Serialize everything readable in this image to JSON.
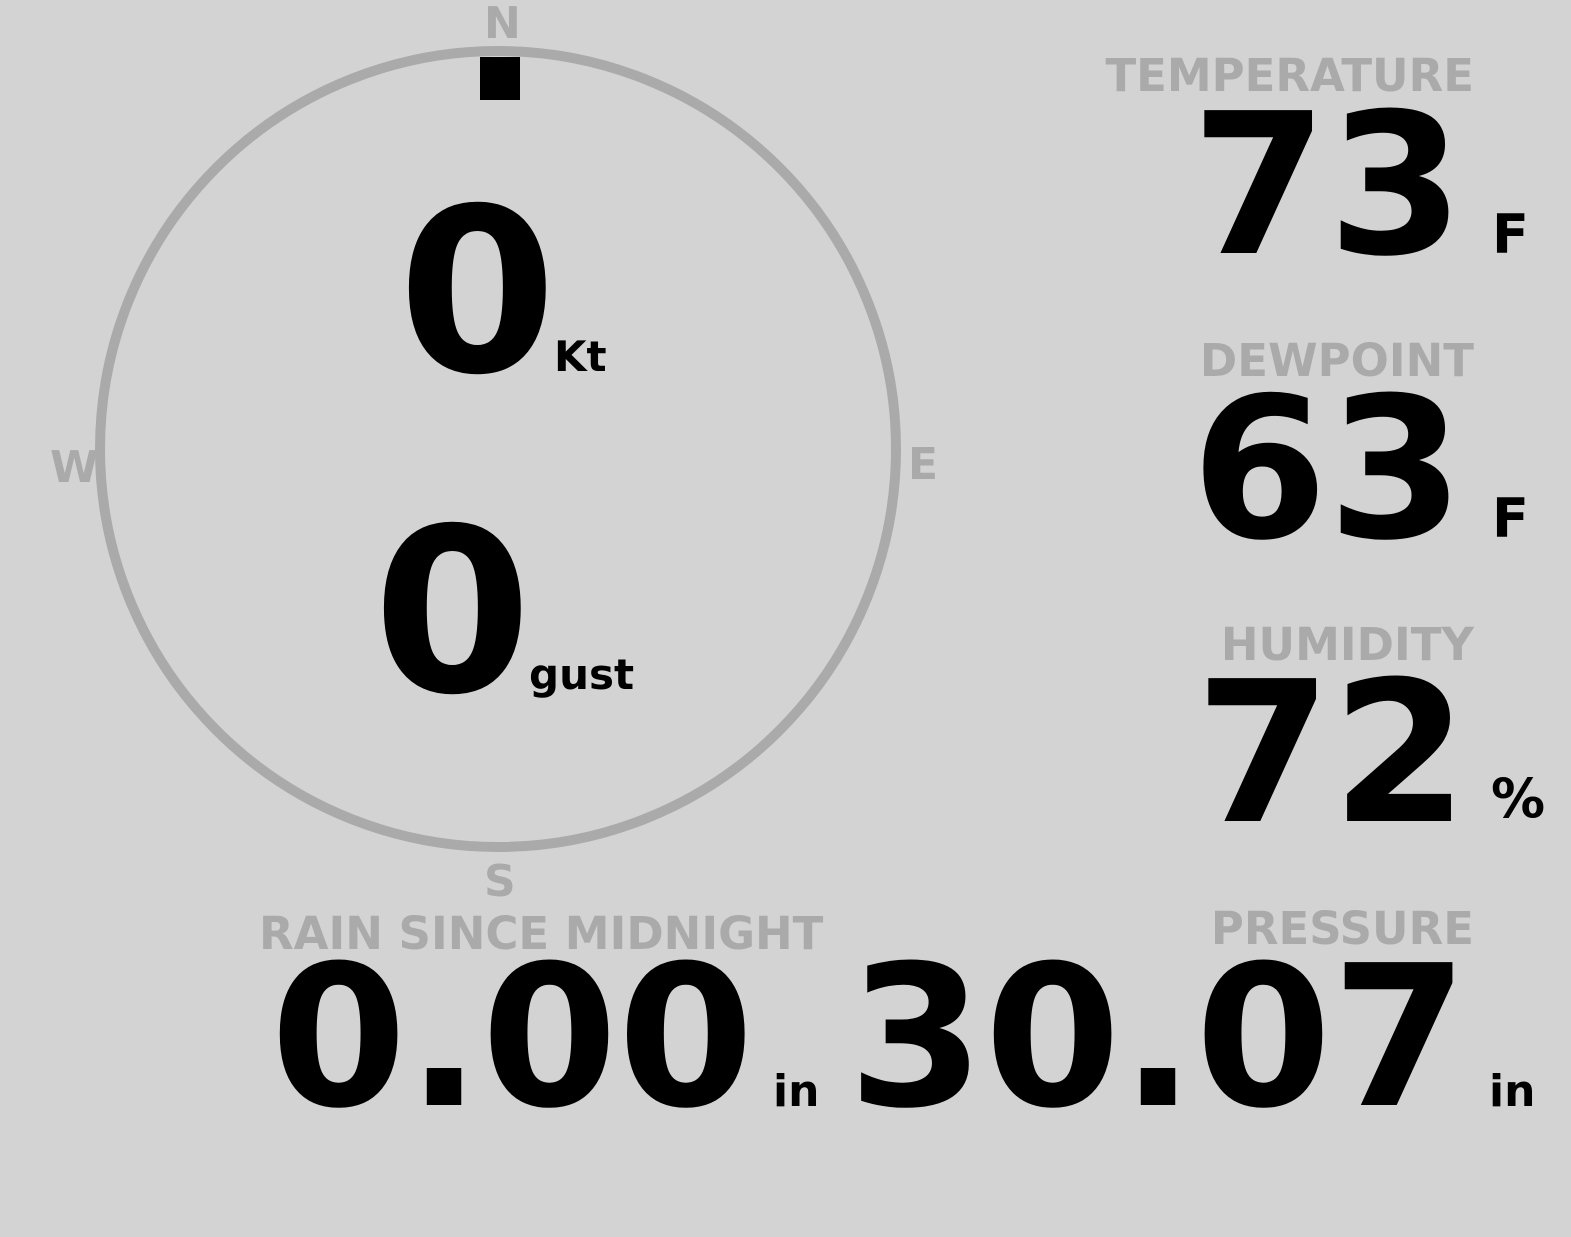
{
  "colors": {
    "background": "#d3d3d3",
    "label": "#aaaaaa",
    "value": "#000000",
    "dial": "#aaaaaa"
  },
  "wind": {
    "cardinals": {
      "n": "N",
      "e": "E",
      "s": "S",
      "w": "W"
    },
    "direction_deg": 0,
    "speed": "0",
    "speed_unit": "Kt",
    "gust": "0",
    "gust_unit": "gust"
  },
  "temperature": {
    "label": "TEMPERATURE",
    "value": "73",
    "unit": "F"
  },
  "dewpoint": {
    "label": "DEWPOINT",
    "value": "63",
    "unit": "F"
  },
  "humidity": {
    "label": "HUMIDITY",
    "value": "72",
    "unit": "%"
  },
  "rain": {
    "label": "RAIN SINCE MIDNIGHT",
    "value": "0.00",
    "unit": "in"
  },
  "pressure": {
    "label": "PRESSURE",
    "value": "30.07",
    "unit": "in"
  }
}
